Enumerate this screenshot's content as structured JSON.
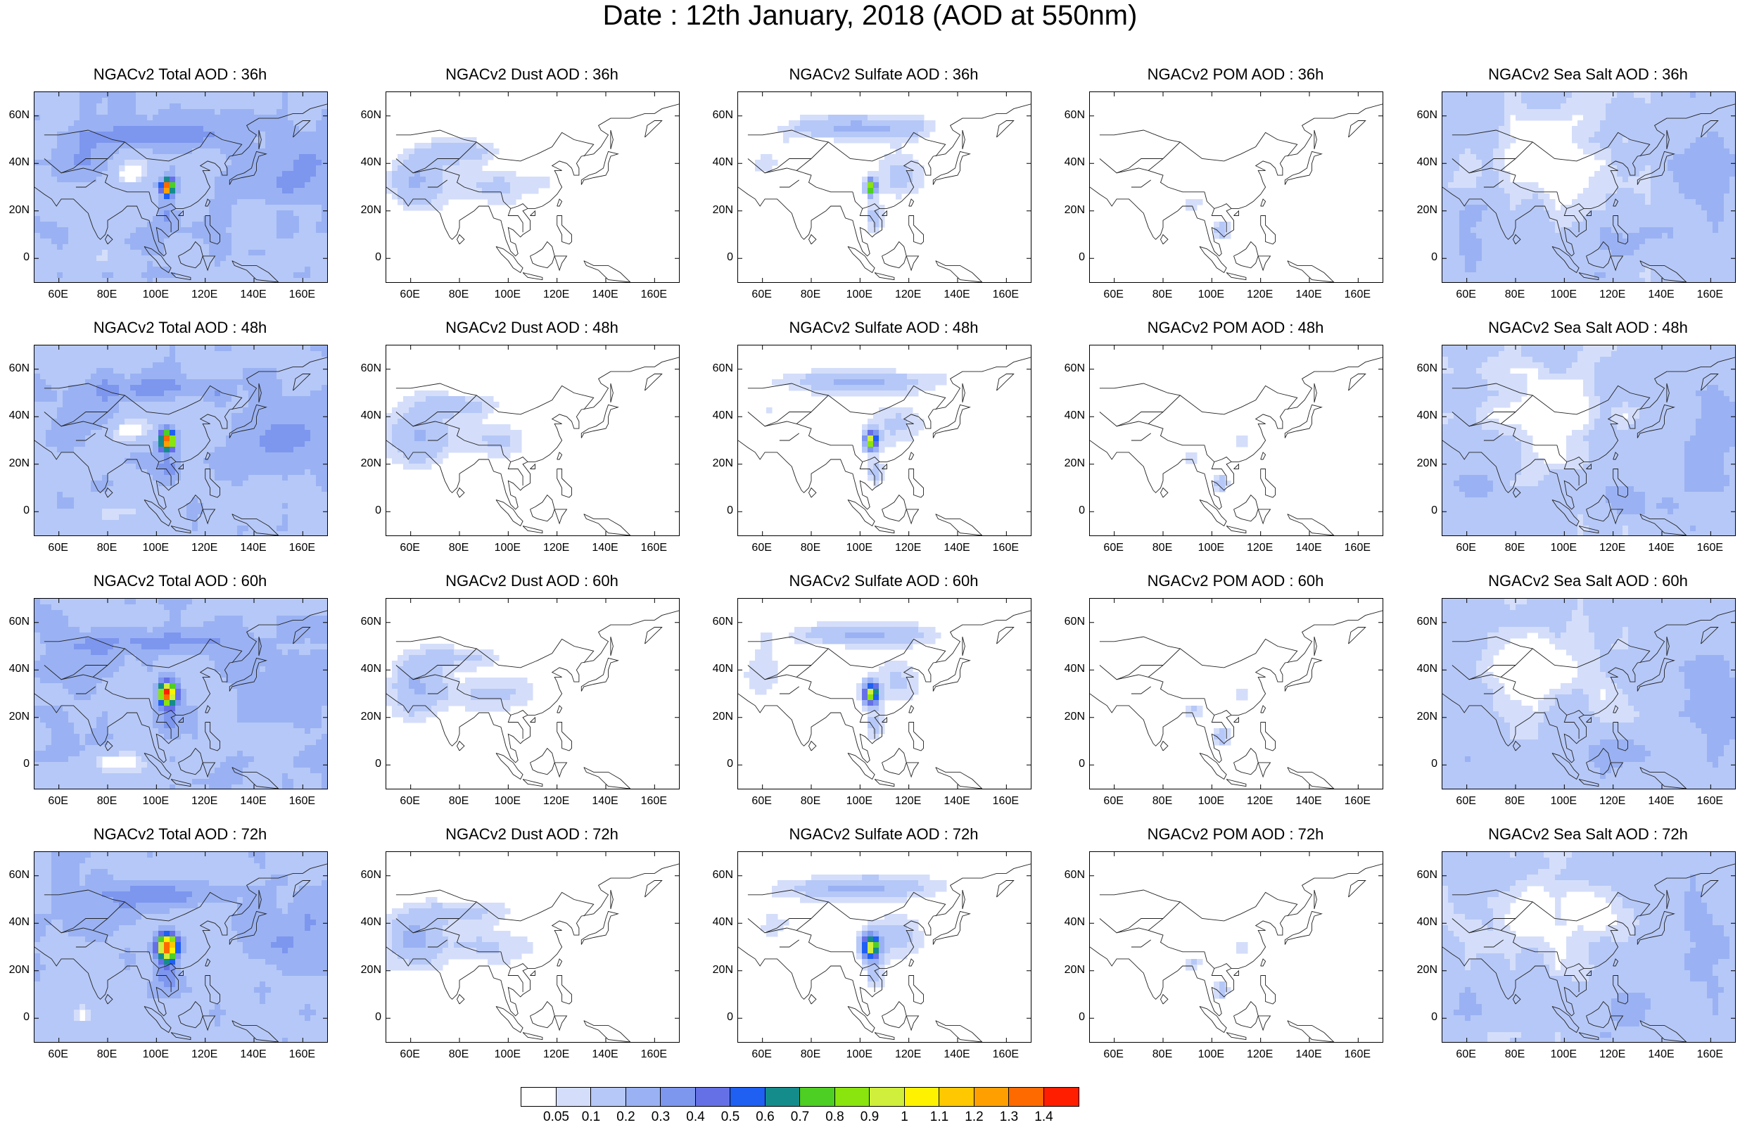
{
  "title": "Date : 12th January, 2018 (AOD at 550nm)",
  "species": [
    "Total",
    "Dust",
    "Sulfate",
    "POM",
    "Sea Salt"
  ],
  "lead_times": [
    "36h",
    "48h",
    "60h",
    "72h"
  ],
  "panel_titles": [
    [
      "NGACv2 Total AOD : 36h",
      "NGACv2 Dust AOD : 36h",
      "NGACv2 Sulfate AOD : 36h",
      "NGACv2 POM AOD : 36h",
      "NGACv2 Sea Salt AOD : 36h"
    ],
    [
      "NGACv2 Total AOD : 48h",
      "NGACv2 Dust AOD : 48h",
      "NGACv2 Sulfate AOD : 48h",
      "NGACv2 POM AOD : 48h",
      "NGACv2 Sea Salt AOD : 48h"
    ],
    [
      "NGACv2 Total AOD : 60h",
      "NGACv2 Dust AOD : 60h",
      "NGACv2 Sulfate AOD : 60h",
      "NGACv2 POM AOD : 60h",
      "NGACv2 Sea Salt AOD : 60h"
    ],
    [
      "NGACv2 Total AOD : 72h",
      "NGACv2 Dust AOD : 72h",
      "NGACv2 Sulfate AOD : 72h",
      "NGACv2 POM AOD : 72h",
      "NGACv2 Sea Salt  AOD : 72h"
    ]
  ],
  "lat_ticks": [
    "60N",
    "40N",
    "20N",
    "0"
  ],
  "lon_ticks": [
    "60E",
    "80E",
    "100E",
    "120E",
    "140E",
    "160E"
  ],
  "colorbar": {
    "labels": [
      "0.05",
      "0.1",
      "0.2",
      "0.3",
      "0.4",
      "0.5",
      "0.6",
      "0.7",
      "0.8",
      "0.9",
      "1",
      "1.1",
      "1.2",
      "1.3",
      "1.4"
    ],
    "colors": [
      "#ffffff",
      "#d4defa",
      "#b6c8f7",
      "#9ab2f3",
      "#7d96ee",
      "#6570e6",
      "#1f5ff2",
      "#158c8c",
      "#4ecf23",
      "#8ae40e",
      "#d0ee3c",
      "#fff200",
      "#ffc800",
      "#ffa000",
      "#ff6a00",
      "#ff1e00"
    ]
  },
  "map_extent": {
    "lon": [
      50,
      170
    ],
    "lat": [
      -10,
      70
    ]
  }
}
